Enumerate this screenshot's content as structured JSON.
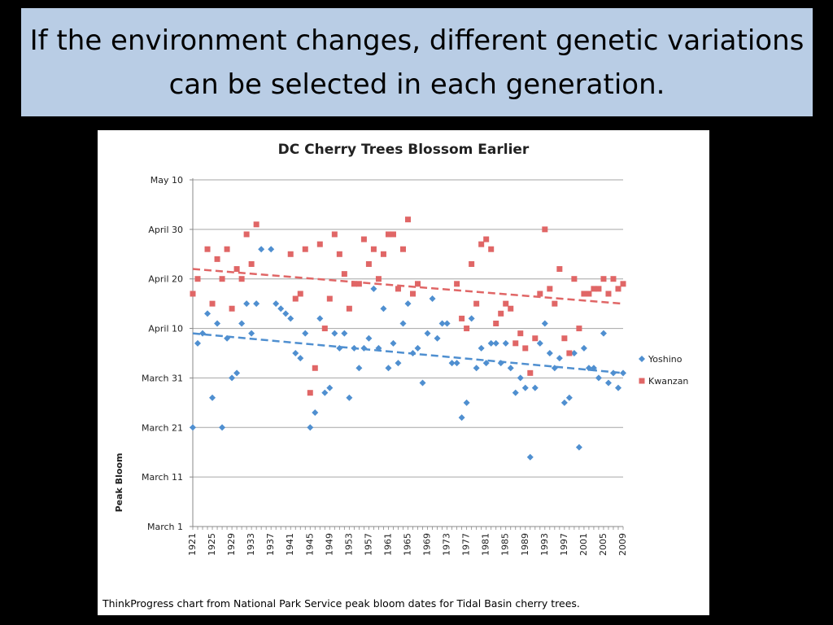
{
  "slide": {
    "title": "If the environment changes, different genetic variations can be selected in each generation."
  },
  "caption": "ThinkProgress chart from National Park Service peak bloom dates for Tidal Basin cherry trees.",
  "chart_data": {
    "type": "scatter",
    "title": "DC Cherry Trees Blossom Earlier",
    "xlabel": "",
    "ylabel": "Peak Bloom",
    "x_tick_labels": [
      "1921",
      "1925",
      "1929",
      "1933",
      "1937",
      "1941",
      "1945",
      "1949",
      "1953",
      "1957",
      "1961",
      "1965",
      "1969",
      "1973",
      "1977",
      "1981",
      "1985",
      "1989",
      "1993",
      "1997",
      "2001",
      "2005",
      "2009"
    ],
    "y_tick_labels": [
      "March 1",
      "March 11",
      "March 21",
      "March 31",
      "April 10",
      "April 20",
      "April 30",
      "May 10"
    ],
    "y_unit": "days after February 28",
    "ylim": [
      1,
      71
    ],
    "xlim": [
      1921,
      2009
    ],
    "grid": true,
    "legend_position": "right",
    "trendlines": "linear, dashed",
    "colors": {
      "Yoshino": "#4f8fd0",
      "Kwanzan": "#e06666"
    },
    "series": [
      {
        "name": "Yoshino",
        "marker": "diamond",
        "trend": [
          [
            1921,
            40
          ],
          [
            2009,
            32
          ]
        ],
        "points": [
          [
            1921,
            21
          ],
          [
            1922,
            38
          ],
          [
            1923,
            40
          ],
          [
            1924,
            44
          ],
          [
            1925,
            27
          ],
          [
            1926,
            42
          ],
          [
            1927,
            21
          ],
          [
            1928,
            39
          ],
          [
            1929,
            31
          ],
          [
            1930,
            32
          ],
          [
            1931,
            42
          ],
          [
            1932,
            46
          ],
          [
            1933,
            40
          ],
          [
            1934,
            46
          ],
          [
            1935,
            57
          ],
          [
            1937,
            57
          ],
          [
            1938,
            46
          ],
          [
            1939,
            45
          ],
          [
            1940,
            44
          ],
          [
            1941,
            43
          ],
          [
            1942,
            36
          ],
          [
            1943,
            35
          ],
          [
            1944,
            40
          ],
          [
            1945,
            21
          ],
          [
            1946,
            24
          ],
          [
            1947,
            43
          ],
          [
            1948,
            28
          ],
          [
            1949,
            29
          ],
          [
            1950,
            40
          ],
          [
            1951,
            37
          ],
          [
            1952,
            40
          ],
          [
            1953,
            27
          ],
          [
            1954,
            37
          ],
          [
            1955,
            33
          ],
          [
            1956,
            37
          ],
          [
            1957,
            39
          ],
          [
            1958,
            49
          ],
          [
            1959,
            37
          ],
          [
            1960,
            45
          ],
          [
            1961,
            33
          ],
          [
            1962,
            38
          ],
          [
            1963,
            34
          ],
          [
            1964,
            42
          ],
          [
            1965,
            46
          ],
          [
            1966,
            36
          ],
          [
            1967,
            37
          ],
          [
            1968,
            30
          ],
          [
            1969,
            40
          ],
          [
            1970,
            47
          ],
          [
            1971,
            39
          ],
          [
            1972,
            42
          ],
          [
            1973,
            42
          ],
          [
            1974,
            34
          ],
          [
            1975,
            34
          ],
          [
            1976,
            23
          ],
          [
            1977,
            26
          ],
          [
            1978,
            43
          ],
          [
            1979,
            33
          ],
          [
            1980,
            37
          ],
          [
            1981,
            34
          ],
          [
            1982,
            38
          ],
          [
            1983,
            38
          ],
          [
            1984,
            34
          ],
          [
            1985,
            38
          ],
          [
            1986,
            33
          ],
          [
            1987,
            28
          ],
          [
            1988,
            31
          ],
          [
            1989,
            29
          ],
          [
            1990,
            15
          ],
          [
            1991,
            29
          ],
          [
            1992,
            38
          ],
          [
            1993,
            42
          ],
          [
            1994,
            36
          ],
          [
            1995,
            33
          ],
          [
            1996,
            35
          ],
          [
            1997,
            26
          ],
          [
            1998,
            27
          ],
          [
            1999,
            36
          ],
          [
            2000,
            17
          ],
          [
            2001,
            37
          ],
          [
            2002,
            33
          ],
          [
            2003,
            33
          ],
          [
            2004,
            31
          ],
          [
            2005,
            40
          ],
          [
            2006,
            30
          ],
          [
            2007,
            32
          ],
          [
            2008,
            29
          ],
          [
            2009,
            32
          ]
        ]
      },
      {
        "name": "Kwanzan",
        "marker": "square",
        "trend": [
          [
            1921,
            53
          ],
          [
            2009,
            46
          ]
        ],
        "points": [
          [
            1921,
            48
          ],
          [
            1922,
            51
          ],
          [
            1924,
            57
          ],
          [
            1925,
            46
          ],
          [
            1926,
            55
          ],
          [
            1927,
            51
          ],
          [
            1928,
            57
          ],
          [
            1929,
            45
          ],
          [
            1930,
            53
          ],
          [
            1931,
            51
          ],
          [
            1932,
            60
          ],
          [
            1933,
            54
          ],
          [
            1934,
            62
          ],
          [
            1941,
            56
          ],
          [
            1942,
            47
          ],
          [
            1943,
            48
          ],
          [
            1944,
            57
          ],
          [
            1945,
            28
          ],
          [
            1946,
            33
          ],
          [
            1947,
            58
          ],
          [
            1948,
            41
          ],
          [
            1949,
            47
          ],
          [
            1950,
            60
          ],
          [
            1951,
            56
          ],
          [
            1952,
            52
          ],
          [
            1953,
            45
          ],
          [
            1954,
            50
          ],
          [
            1955,
            50
          ],
          [
            1956,
            59
          ],
          [
            1957,
            54
          ],
          [
            1958,
            57
          ],
          [
            1959,
            51
          ],
          [
            1960,
            56
          ],
          [
            1961,
            60
          ],
          [
            1962,
            60
          ],
          [
            1963,
            49
          ],
          [
            1964,
            57
          ],
          [
            1965,
            63
          ],
          [
            1966,
            48
          ],
          [
            1967,
            50
          ],
          [
            1975,
            50
          ],
          [
            1976,
            43
          ],
          [
            1977,
            41
          ],
          [
            1978,
            54
          ],
          [
            1979,
            46
          ],
          [
            1980,
            58
          ],
          [
            1981,
            59
          ],
          [
            1982,
            57
          ],
          [
            1983,
            42
          ],
          [
            1984,
            44
          ],
          [
            1985,
            46
          ],
          [
            1986,
            45
          ],
          [
            1987,
            38
          ],
          [
            1988,
            40
          ],
          [
            1989,
            37
          ],
          [
            1990,
            32
          ],
          [
            1991,
            39
          ],
          [
            1992,
            48
          ],
          [
            1993,
            61
          ],
          [
            1994,
            49
          ],
          [
            1995,
            46
          ],
          [
            1996,
            53
          ],
          [
            1997,
            39
          ],
          [
            1998,
            36
          ],
          [
            1999,
            51
          ],
          [
            2000,
            41
          ],
          [
            2001,
            48
          ],
          [
            2002,
            48
          ],
          [
            2003,
            49
          ],
          [
            2004,
            49
          ],
          [
            2005,
            51
          ],
          [
            2006,
            48
          ],
          [
            2007,
            51
          ],
          [
            2008,
            49
          ],
          [
            2009,
            50
          ]
        ]
      }
    ]
  }
}
